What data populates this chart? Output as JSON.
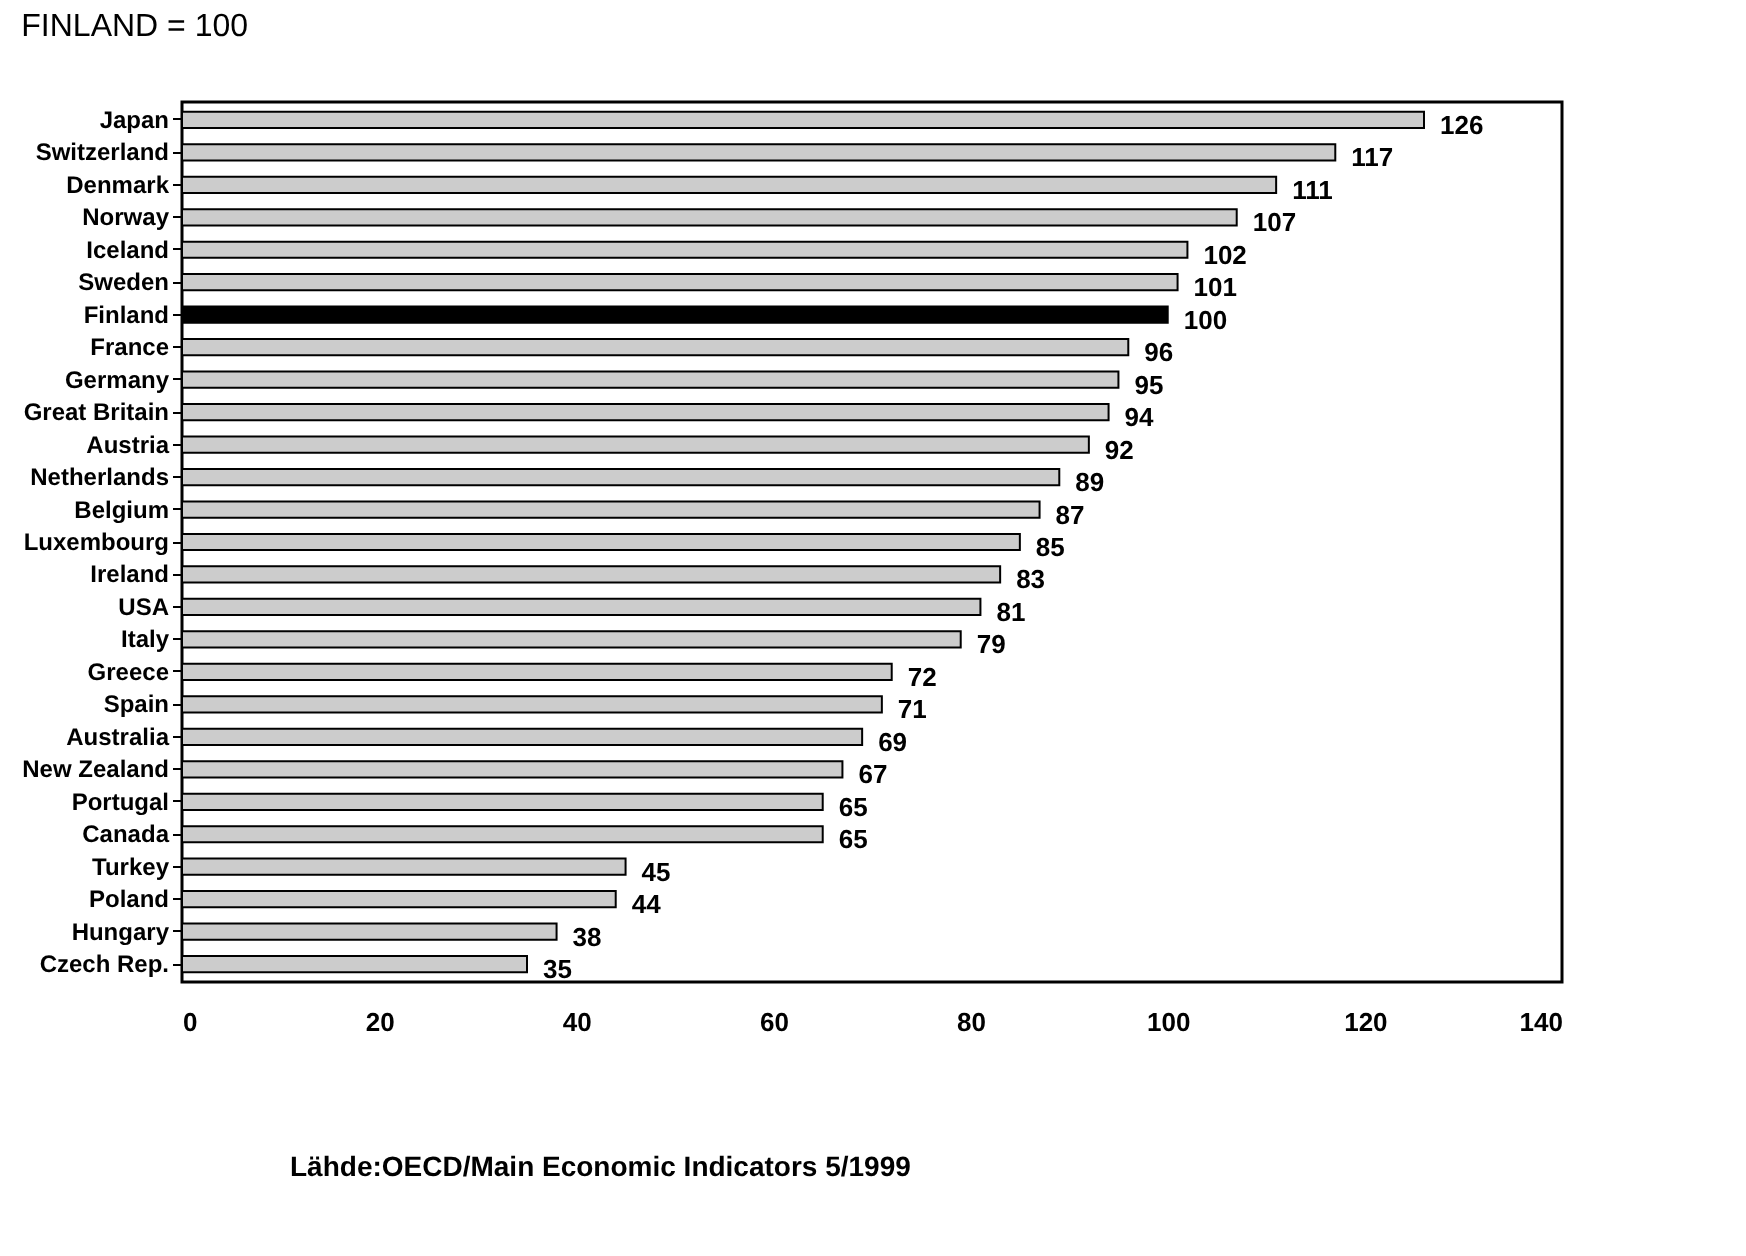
{
  "chart_data": {
    "type": "bar",
    "orientation": "horizontal",
    "title": "FINLAND = 100",
    "categories": [
      "Japan",
      "Switzerland",
      "Denmark",
      "Norway",
      "Iceland",
      "Sweden",
      "Finland",
      "France",
      "Germany",
      "Great Britain",
      "Austria",
      "Netherlands",
      "Belgium",
      "Luxembourg",
      "Ireland",
      "USA",
      "Italy",
      "Greece",
      "Spain",
      "Australia",
      "New Zealand",
      "Portugal",
      "Canada",
      "Turkey",
      "Poland",
      "Hungary",
      "Czech Rep."
    ],
    "values": [
      126,
      117,
      111,
      107,
      102,
      101,
      100,
      96,
      95,
      94,
      92,
      89,
      87,
      85,
      83,
      81,
      79,
      72,
      71,
      69,
      67,
      65,
      65,
      45,
      44,
      38,
      35
    ],
    "colors": [
      "#cccccc",
      "#cccccc",
      "#cccccc",
      "#cccccc",
      "#cccccc",
      "#cccccc",
      "#000000",
      "#cccccc",
      "#cccccc",
      "#cccccc",
      "#cccccc",
      "#cccccc",
      "#cccccc",
      "#cccccc",
      "#cccccc",
      "#cccccc",
      "#cccccc",
      "#cccccc",
      "#cccccc",
      "#cccccc",
      "#cccccc",
      "#cccccc",
      "#cccccc",
      "#cccccc",
      "#cccccc",
      "#cccccc",
      "#cccccc"
    ],
    "xlim": [
      0,
      140
    ],
    "xticks": [
      0,
      20,
      40,
      60,
      80,
      100,
      120,
      140
    ],
    "data_labels": true,
    "grid": false,
    "annotations": [
      "Lähde:OECD/Main Economic Indicators 5/1999"
    ]
  }
}
